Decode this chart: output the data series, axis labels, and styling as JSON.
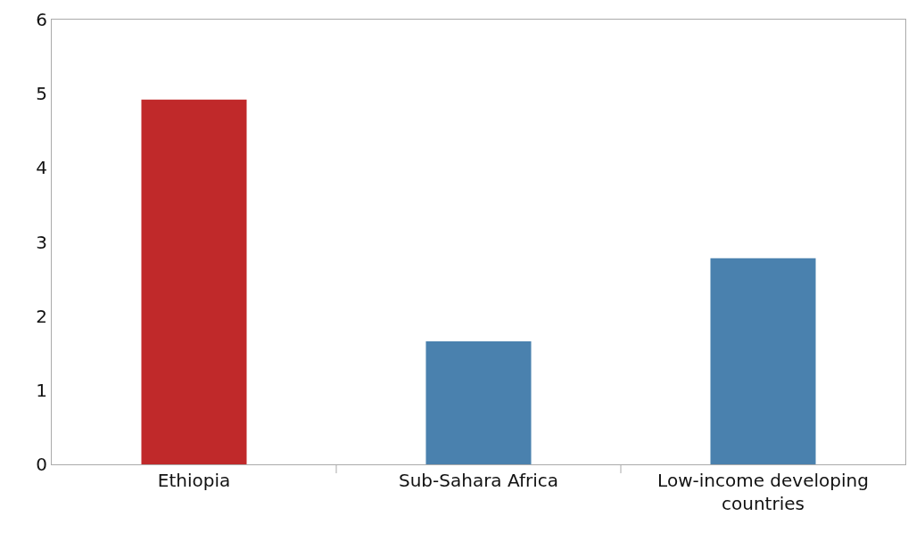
{
  "chart_data": {
    "type": "bar",
    "categories": [
      "Ethiopia",
      "Sub-Sahara Africa",
      "Low-income developing countries"
    ],
    "values": [
      4.92,
      1.66,
      2.78
    ],
    "colors": [
      "#c0292a",
      "#4a81ae",
      "#4a81ae"
    ],
    "ylim": [
      0,
      6
    ],
    "yticks": [
      0,
      1,
      2,
      3,
      4,
      5,
      6
    ],
    "grid": false
  }
}
